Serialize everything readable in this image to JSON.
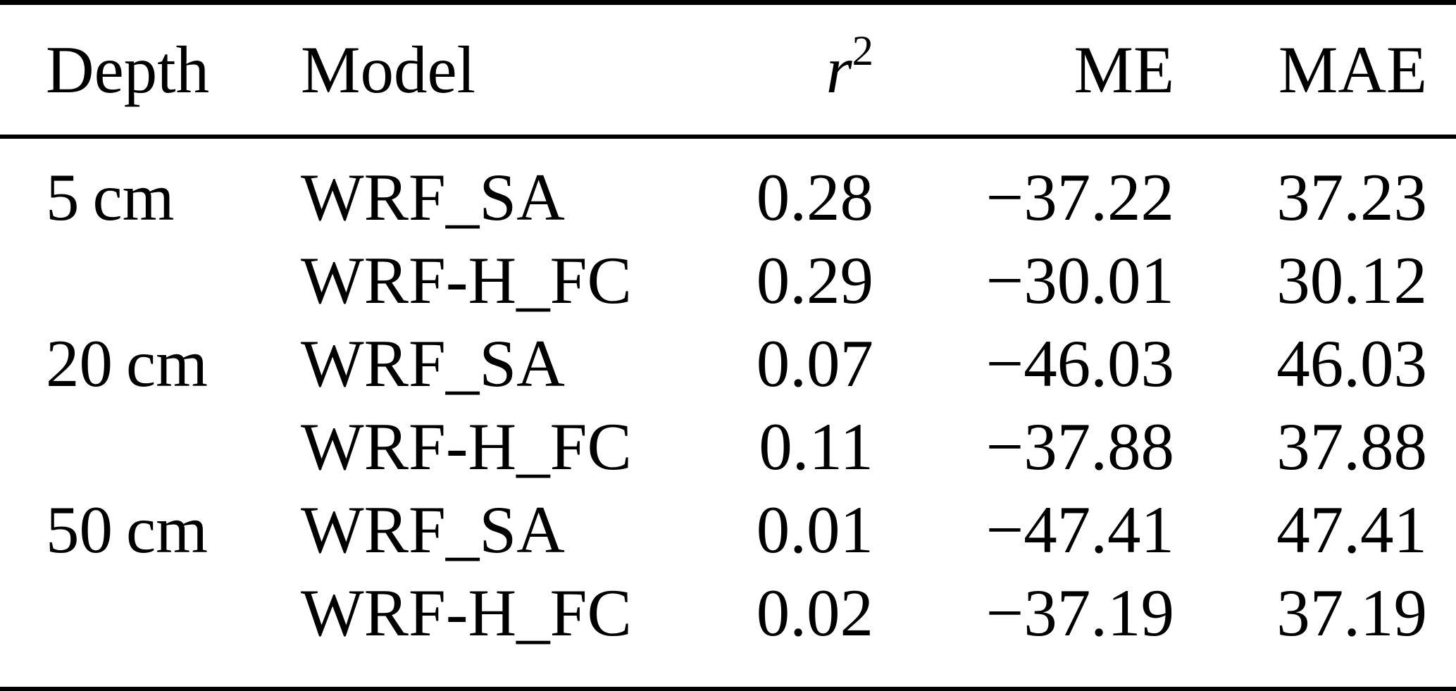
{
  "table": {
    "headers": {
      "depth": "Depth",
      "model": "Model",
      "r2_base": "r",
      "r2_sup": "2",
      "me": "ME",
      "mae": "MAE"
    },
    "rows": [
      {
        "depth": "5 cm",
        "model": "WRF_SA",
        "r2": "0.28",
        "me": "−37.22",
        "mae": "37.23"
      },
      {
        "depth": "",
        "model": "WRF-H_FC",
        "r2": "0.29",
        "me": "−30.01",
        "mae": "30.12"
      },
      {
        "depth": "20 cm",
        "model": "WRF_SA",
        "r2": "0.07",
        "me": "−46.03",
        "mae": "46.03"
      },
      {
        "depth": "",
        "model": "WRF-H_FC",
        "r2": "0.11",
        "me": "−37.88",
        "mae": "37.88"
      },
      {
        "depth": "50 cm",
        "model": "WRF_SA",
        "r2": "0.01",
        "me": "−47.41",
        "mae": "47.41"
      },
      {
        "depth": "",
        "model": "WRF-H_FC",
        "r2": "0.02",
        "me": "−37.19",
        "mae": "37.19"
      }
    ]
  },
  "colors": {
    "text": "#000000",
    "background": "#ffffff",
    "rule": "#000000"
  }
}
